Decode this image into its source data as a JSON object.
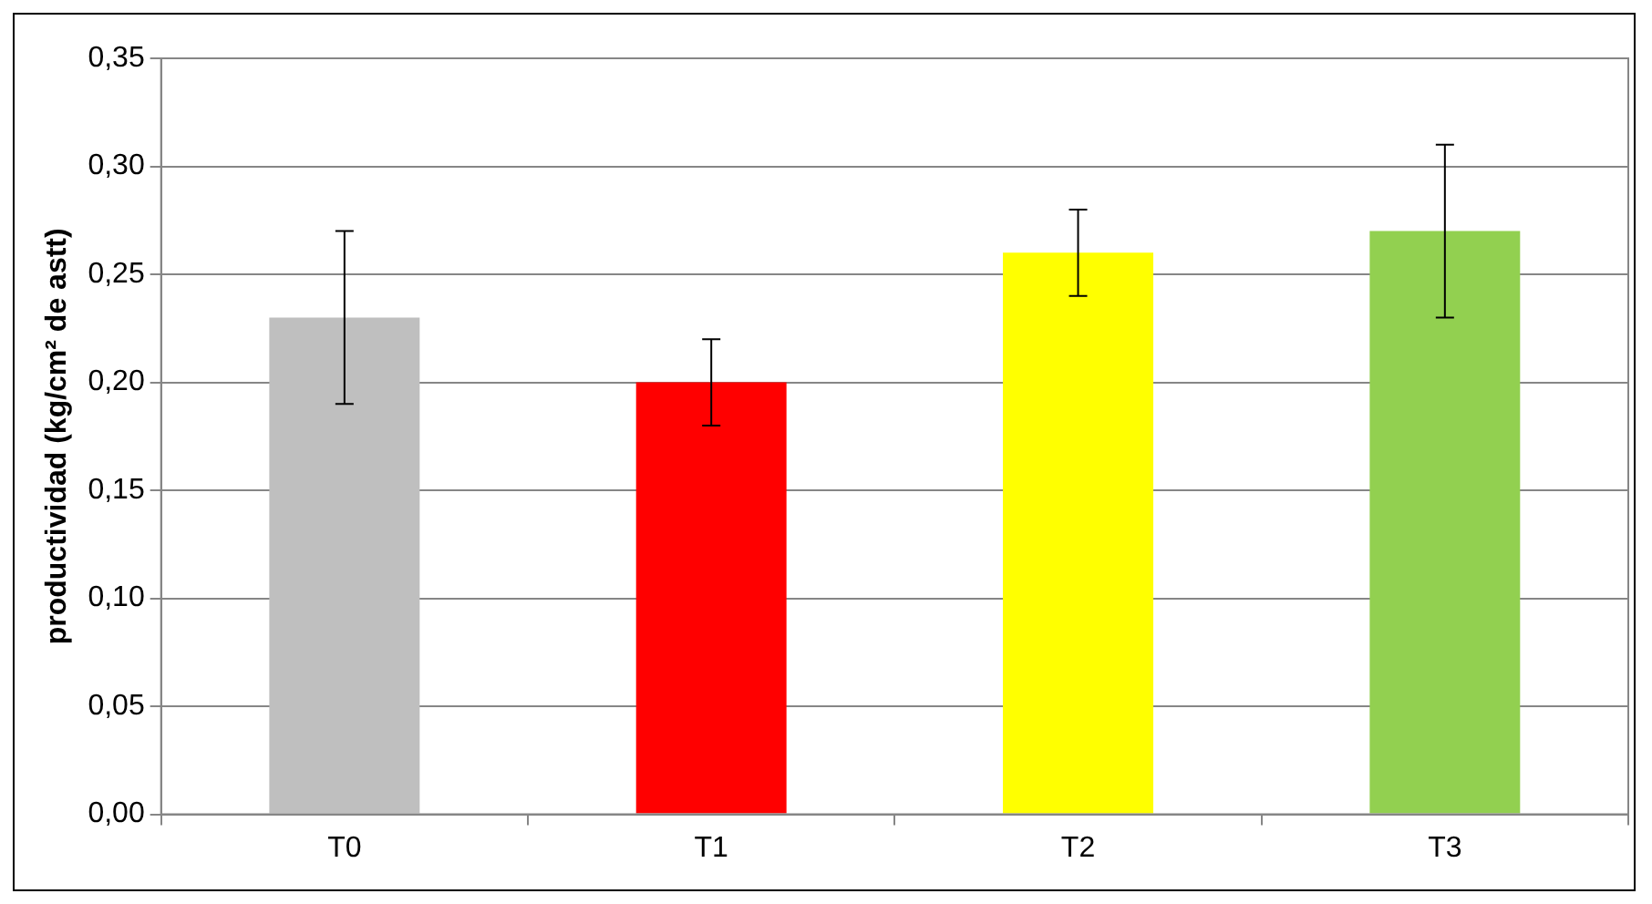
{
  "chart_data": {
    "type": "bar",
    "ylabel": "productividad (kg/cm² de astt)",
    "categories": [
      "T0",
      "T1",
      "T2",
      "T3"
    ],
    "values": [
      0.23,
      0.2,
      0.26,
      0.27
    ],
    "colors": [
      "#bfbfbf",
      "#ff0000",
      "#ffff00",
      "#92d050"
    ],
    "errors": [
      0.04,
      0.02,
      0.02,
      0.04
    ],
    "ylim": [
      0,
      0.35
    ],
    "yticks": [
      {
        "value": 0,
        "label": "0,00"
      },
      {
        "value": 0.05,
        "label": "0,05"
      },
      {
        "value": 0.1,
        "label": "0,10"
      },
      {
        "value": 0.15,
        "label": "0,15"
      },
      {
        "value": 0.2,
        "label": "0,20"
      },
      {
        "value": 0.25,
        "label": "0,25"
      },
      {
        "value": 0.3,
        "label": "0,30"
      },
      {
        "value": 0.35,
        "label": "0,35"
      }
    ],
    "grid": "y",
    "legend": false
  }
}
